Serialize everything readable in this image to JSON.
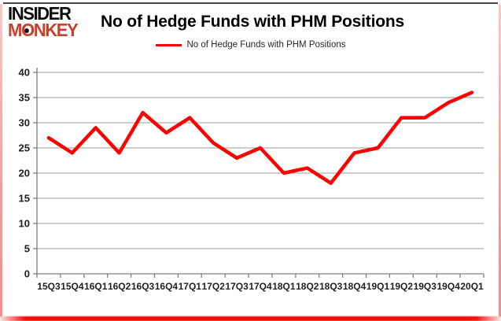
{
  "header": {
    "logo": {
      "line1": "INSIDER",
      "line2_pre": "M",
      "line2_o": "O",
      "line2_post": "NKEY"
    },
    "title": "No of Hedge Funds with PHM Positions"
  },
  "legend": {
    "label": "No of Hedge Funds with PHM Positions"
  },
  "colors": {
    "line": "#ff0000",
    "logo_red": "#c7402d",
    "logo_black": "#0d0d0d",
    "grid": "#9b9b9b",
    "axis": "#7f7f7f",
    "label": "#1f1f1f",
    "frame_pink": "#efa09b",
    "frame_bottom_red": "#fb0d0d",
    "frame_top_gray": "#474747"
  },
  "chart_data": {
    "type": "line",
    "title": "No of Hedge Funds with PHM Positions",
    "categories": [
      "15Q3",
      "15Q4",
      "16Q1",
      "16Q2",
      "16Q3",
      "16Q4",
      "17Q1",
      "17Q2",
      "17Q3",
      "17Q4",
      "18Q1",
      "18Q2",
      "18Q3",
      "18Q4",
      "19Q1",
      "19Q2",
      "19Q3",
      "19Q4",
      "20Q1"
    ],
    "series": [
      {
        "name": "No of Hedge Funds with PHM Positions",
        "values": [
          27,
          24,
          29,
          24,
          32,
          28,
          31,
          26,
          23,
          25,
          20,
          21,
          18,
          24,
          25,
          31,
          31,
          34,
          36
        ]
      }
    ],
    "ylim": [
      0,
      40
    ],
    "yticks": [
      0,
      5,
      10,
      15,
      20,
      25,
      30,
      35,
      40
    ],
    "grid": "horizontal",
    "legend_position": "top",
    "xlabel": "",
    "ylabel": ""
  }
}
